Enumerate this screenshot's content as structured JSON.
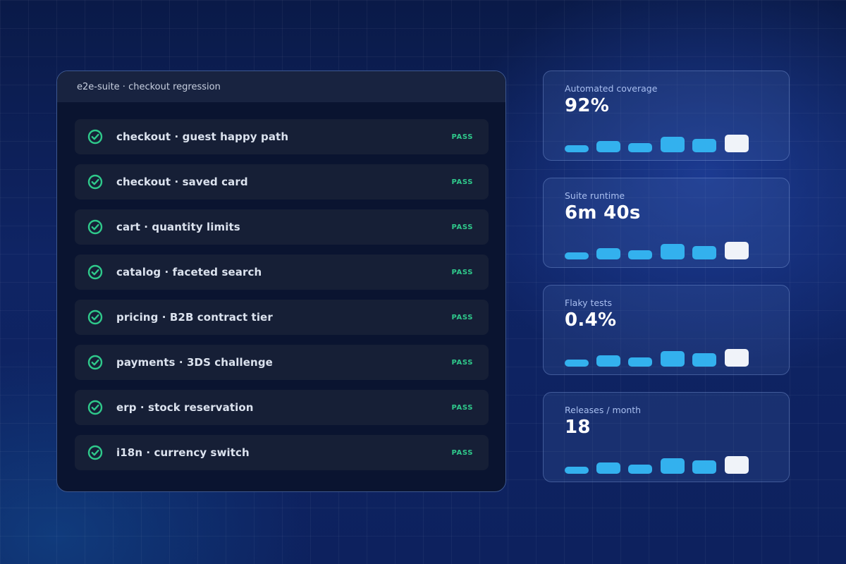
{
  "suite": {
    "title": "e2e-suite · checkout regression",
    "tests": [
      {
        "name": "checkout · guest happy path",
        "status": "PASS"
      },
      {
        "name": "checkout · saved card",
        "status": "PASS"
      },
      {
        "name": "cart · quantity limits",
        "status": "PASS"
      },
      {
        "name": "catalog · faceted search",
        "status": "PASS"
      },
      {
        "name": "pricing · B2B contract tier",
        "status": "PASS"
      },
      {
        "name": "payments · 3DS challenge",
        "status": "PASS"
      },
      {
        "name": "erp · stock reservation",
        "status": "PASS"
      },
      {
        "name": "i18n · currency switch",
        "status": "PASS"
      }
    ]
  },
  "metrics": [
    {
      "label": "Automated coverage",
      "value": "92%"
    },
    {
      "label": "Suite runtime",
      "value": "6m 40s"
    },
    {
      "label": "Flaky tests",
      "value": "0.4%"
    },
    {
      "label": "Releases / month",
      "value": "18"
    }
  ],
  "colors": {
    "pass": "#2fc98b",
    "bar": "#33b1ee",
    "bar_highlight": "#f0f3f9"
  },
  "icons": {
    "test_status": "check-circle-icon"
  }
}
